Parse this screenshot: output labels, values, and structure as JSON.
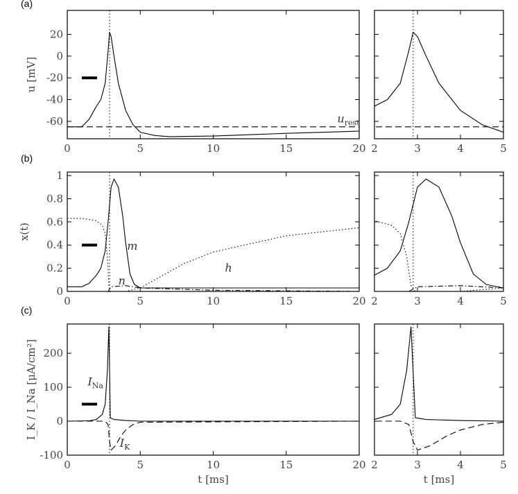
{
  "chart_data": [
    {
      "type": "line",
      "panel": "(a)",
      "ylabel": "u [mV]",
      "xlabel": "",
      "ylim": [
        -76,
        42
      ],
      "yticks": [
        20,
        0,
        -20,
        -40,
        -60
      ],
      "xlim_left": [
        0,
        20
      ],
      "xticks_left": [
        0,
        5,
        10,
        15,
        20
      ],
      "xlim_right": [
        2,
        5
      ],
      "xticks_right": [
        2,
        3,
        4,
        5
      ],
      "marker_t": 2.9,
      "scale_bar_y": -20,
      "series": [
        {
          "name": "u",
          "style": "solid",
          "points": [
            [
              0,
              -65
            ],
            [
              1,
              -65
            ],
            [
              1.5,
              -58
            ],
            [
              2,
              -46
            ],
            [
              2.3,
              -40
            ],
            [
              2.6,
              -25
            ],
            [
              2.8,
              5
            ],
            [
              2.9,
              22
            ],
            [
              3.0,
              18
            ],
            [
              3.2,
              0
            ],
            [
              3.5,
              -25
            ],
            [
              4,
              -50
            ],
            [
              4.5,
              -63
            ],
            [
              5,
              -70
            ],
            [
              6,
              -73
            ],
            [
              7,
              -74
            ],
            [
              10,
              -73.5
            ],
            [
              15,
              -71
            ],
            [
              20,
              -69
            ]
          ]
        },
        {
          "name": "u_rest",
          "style": "dashed",
          "points": [
            [
              0,
              -65
            ],
            [
              20,
              -65
            ]
          ]
        }
      ],
      "annotations": [
        {
          "text": "u",
          "sub": "rest",
          "t": 18.5,
          "y": -61
        }
      ]
    },
    {
      "type": "line",
      "panel": "(b)",
      "ylabel": "x(t)",
      "xlabel": "",
      "ylim": [
        0,
        1.03
      ],
      "yticks": [
        0.0,
        0.2,
        0.4,
        0.6,
        0.8,
        1.0
      ],
      "xlim_left": [
        0,
        20
      ],
      "xticks_left": [
        0,
        5,
        10,
        15,
        20
      ],
      "xlim_right": [
        2,
        5
      ],
      "xticks_right": [
        2,
        3,
        4,
        5
      ],
      "marker_t": 2.9,
      "scale_bar_y": 0.4,
      "series": [
        {
          "name": "m",
          "style": "solid",
          "points": [
            [
              0,
              0.04
            ],
            [
              1,
              0.04
            ],
            [
              1.5,
              0.07
            ],
            [
              2,
              0.14
            ],
            [
              2.3,
              0.2
            ],
            [
              2.6,
              0.35
            ],
            [
              2.8,
              0.6
            ],
            [
              3.0,
              0.9
            ],
            [
              3.2,
              0.97
            ],
            [
              3.5,
              0.9
            ],
            [
              3.8,
              0.65
            ],
            [
              4,
              0.42
            ],
            [
              4.3,
              0.15
            ],
            [
              4.6,
              0.06
            ],
            [
              5,
              0.03
            ],
            [
              20,
              0.03
            ]
          ]
        },
        {
          "name": "h",
          "style": "dotted",
          "points": [
            [
              0,
              0.63
            ],
            [
              1,
              0.63
            ],
            [
              2,
              0.61
            ],
            [
              2.4,
              0.57
            ],
            [
              2.6,
              0.5
            ],
            [
              2.75,
              0.3
            ],
            [
              2.85,
              0.05
            ],
            [
              2.95,
              0
            ],
            [
              4,
              0
            ],
            [
              5,
              0.03
            ],
            [
              6,
              0.1
            ],
            [
              8,
              0.24
            ],
            [
              10,
              0.34
            ],
            [
              15,
              0.48
            ],
            [
              20,
              0.55
            ]
          ]
        },
        {
          "name": "n",
          "style": "dashdot",
          "points": [
            [
              0,
              0.0
            ],
            [
              2.8,
              0.0
            ],
            [
              3.0,
              0.04
            ],
            [
              4,
              0.05
            ],
            [
              5,
              0.03
            ],
            [
              10,
              0.01
            ],
            [
              20,
              0.0
            ]
          ]
        }
      ],
      "annotations": [
        {
          "text": "m",
          "sub": "",
          "t": 4.1,
          "y": 0.36
        },
        {
          "text": "h",
          "sub": "",
          "t": 10.8,
          "y": 0.17
        },
        {
          "text": "n",
          "sub": "",
          "t": 3.5,
          "y": 0.06
        }
      ]
    },
    {
      "type": "line",
      "panel": "(c)",
      "ylabel": "I_K / I_Na [μA/cm²]",
      "xlabel": "t [ms]",
      "ylim": [
        -100,
        286
      ],
      "yticks": [
        200,
        100,
        0,
        -100
      ],
      "xlim_left": [
        0,
        20
      ],
      "xticks_left": [
        0,
        5,
        10,
        15,
        20
      ],
      "xlim_right": [
        2,
        5
      ],
      "xticks_right": [
        2,
        3,
        4,
        5
      ],
      "marker_t": 2.9,
      "scale_bar_y": 50,
      "series": [
        {
          "name": "I_Na",
          "style": "solid",
          "points": [
            [
              0,
              0
            ],
            [
              1.5,
              1
            ],
            [
              2,
              5
            ],
            [
              2.4,
              20
            ],
            [
              2.6,
              50
            ],
            [
              2.75,
              150
            ],
            [
              2.85,
              278
            ],
            [
              2.95,
              10
            ],
            [
              3.2,
              5
            ],
            [
              4,
              2
            ],
            [
              5,
              0
            ],
            [
              20,
              0
            ]
          ]
        },
        {
          "name": "I_K",
          "style": "dashed",
          "points": [
            [
              0,
              0
            ],
            [
              2.6,
              0
            ],
            [
              2.8,
              -10
            ],
            [
              2.9,
              -60
            ],
            [
              3.0,
              -85
            ],
            [
              3.3,
              -72
            ],
            [
              3.7,
              -42
            ],
            [
              4,
              -26
            ],
            [
              4.5,
              -10
            ],
            [
              5,
              -3
            ],
            [
              20,
              0
            ]
          ]
        }
      ],
      "annotations": [
        {
          "text": "I",
          "sub": "Na",
          "t": 1.4,
          "y": 105
        },
        {
          "text": "I",
          "sub": "K",
          "t": 3.6,
          "y": -75
        }
      ]
    }
  ]
}
